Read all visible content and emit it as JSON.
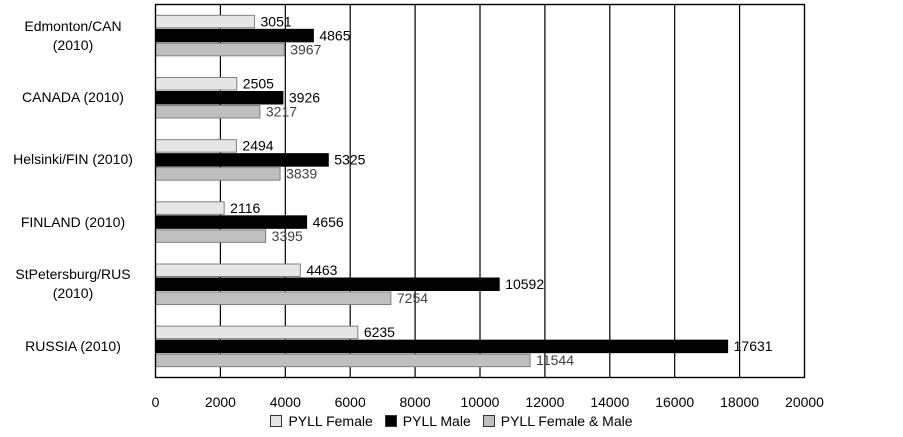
{
  "chart_data": {
    "type": "bar",
    "orientation": "horizontal",
    "categories": [
      [
        "Edmonton/CAN",
        "(2010)"
      ],
      [
        "CANADA (2010)"
      ],
      [
        "Helsinki/FIN (2010)"
      ],
      [
        "FINLAND (2010)"
      ],
      [
        "StPetersburg/RUS",
        "(2010)"
      ],
      [
        "RUSSIA (2010)"
      ]
    ],
    "series": [
      {
        "name": "PYLL Female",
        "values": [
          3051,
          2505,
          2494,
          2116,
          4463,
          6235
        ],
        "color": "#e6e6e6",
        "label_color": "#000000"
      },
      {
        "name": "PYLL Male",
        "values": [
          4865,
          3926,
          5325,
          4656,
          10592,
          17631
        ],
        "color": "#000000",
        "label_color": "#000000"
      },
      {
        "name": "PYLL Female & Male",
        "values": [
          3967,
          3217,
          3839,
          3395,
          7254,
          11544
        ],
        "color": "#bfbfbf",
        "label_color": "#404040"
      }
    ],
    "xlim": [
      0,
      20000
    ],
    "xticks": [
      "0",
      "2000",
      "4000",
      "6000",
      "8000",
      "10000",
      "12000",
      "14000",
      "16000",
      "18000",
      "20000"
    ],
    "grid": true,
    "legend_position": "bottom"
  }
}
